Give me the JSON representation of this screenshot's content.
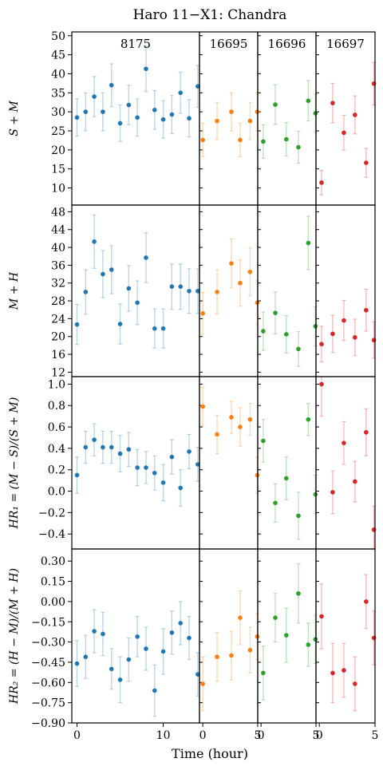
{
  "title": "Haro 11−X1: Chandra",
  "xlabel": "Time (hour)",
  "colors": {
    "8175": "#1f77b4",
    "16695": "#ff7f0e",
    "16696": "#2ca02c",
    "16697": "#d62728"
  },
  "chart_data": {
    "type": "scatter",
    "title": "Haro 11−X1: Chandra",
    "xlabel": "Time (hour)",
    "observations": [
      {
        "obsid": "8175",
        "xlim": [
          -0.6,
          14.2
        ],
        "xticks": [
          0,
          10
        ],
        "color": "#1f77b4"
      },
      {
        "obsid": "16695",
        "xlim": [
          -0.3,
          5.0
        ],
        "xticks": [
          0,
          5
        ],
        "color": "#ff7f0e"
      },
      {
        "obsid": "16696",
        "xlim": [
          -0.3,
          5.0
        ],
        "xticks": [
          0,
          5
        ],
        "color": "#2ca02c"
      },
      {
        "obsid": "16697",
        "xlim": [
          -0.3,
          5.0
        ],
        "xticks": [
          0,
          5
        ],
        "color": "#d62728"
      }
    ],
    "panels": [
      {
        "ylabel": "S + M",
        "ylim": [
          5.5,
          51
        ],
        "yticks": [
          10,
          15,
          20,
          25,
          30,
          35,
          40,
          45,
          50
        ],
        "series": [
          {
            "obsid": "8175",
            "points": [
              [
                0,
                28.5,
                4.9
              ],
              [
                1,
                30,
                5.0
              ],
              [
                2,
                34,
                5.3
              ],
              [
                3,
                30,
                5.0
              ],
              [
                4,
                37,
                5.6
              ],
              [
                5,
                27,
                4.8
              ],
              [
                6,
                31.8,
                5.2
              ],
              [
                7,
                28.5,
                4.9
              ],
              [
                8,
                41.3,
                6.0
              ],
              [
                9,
                30.5,
                5.1
              ],
              [
                10,
                28,
                4.9
              ],
              [
                11,
                29.3,
                5.0
              ],
              [
                12,
                35,
                5.4
              ],
              [
                13,
                28.3,
                4.9
              ],
              [
                14,
                36.7,
                5.5
              ]
            ]
          },
          {
            "obsid": "16695",
            "points": [
              [
                0,
                22.6,
                4.4
              ],
              [
                1.3,
                27.6,
                4.9
              ],
              [
                2.6,
                30,
                5.0
              ],
              [
                3.4,
                22.6,
                4.4
              ],
              [
                4.3,
                27.6,
                4.9
              ],
              [
                4.95,
                30,
                5.0
              ]
            ]
          },
          {
            "obsid": "16696",
            "points": [
              [
                0.2,
                22.2,
                4.4
              ],
              [
                1.3,
                31.9,
                5.2
              ],
              [
                2.3,
                22.8,
                4.4
              ],
              [
                3.4,
                20.7,
                4.2
              ],
              [
                4.3,
                32.9,
                5.3
              ],
              [
                4.95,
                29.6,
                5.0
              ]
            ]
          },
          {
            "obsid": "16697",
            "points": [
              [
                0.2,
                11.4,
                3.2
              ],
              [
                1.2,
                32.3,
                5.2
              ],
              [
                2.2,
                24.5,
                4.6
              ],
              [
                3.2,
                29.2,
                5.0
              ],
              [
                4.2,
                16.6,
                3.8
              ],
              [
                4.9,
                37.4,
                5.6
              ]
            ]
          }
        ]
      },
      {
        "ylabel": "M + H",
        "ylim": [
          11,
          49.5
        ],
        "yticks": [
          12,
          16,
          20,
          24,
          28,
          32,
          36,
          40,
          44,
          48
        ],
        "series": [
          {
            "obsid": "8175",
            "points": [
              [
                0,
                22.7,
                4.5
              ],
              [
                1,
                30,
                5.0
              ],
              [
                2,
                41.3,
                6.0
              ],
              [
                3,
                34,
                5.3
              ],
              [
                4,
                35,
                5.4
              ],
              [
                5,
                22.8,
                4.5
              ],
              [
                6,
                30.8,
                5.1
              ],
              [
                7,
                27.6,
                4.9
              ],
              [
                8,
                37.7,
                5.6
              ],
              [
                9,
                21.8,
                4.4
              ],
              [
                10,
                21.8,
                4.4
              ],
              [
                11,
                31.2,
                5.1
              ],
              [
                12,
                31.2,
                5.1
              ],
              [
                13,
                30.2,
                5.0
              ],
              [
                14,
                30.2,
                5.0
              ]
            ]
          },
          {
            "obsid": "16695",
            "points": [
              [
                0,
                25.2,
                4.7
              ],
              [
                1.3,
                30,
                5.0
              ],
              [
                2.6,
                36.4,
                5.5
              ],
              [
                3.4,
                32,
                5.2
              ],
              [
                4.3,
                34.5,
                5.4
              ],
              [
                4.95,
                27.6,
                4.9
              ]
            ]
          },
          {
            "obsid": "16696",
            "points": [
              [
                0.2,
                21.2,
                4.3
              ],
              [
                1.3,
                25.3,
                4.7
              ],
              [
                2.3,
                20.5,
                4.2
              ],
              [
                3.4,
                17.2,
                3.9
              ],
              [
                4.3,
                41,
                6.0
              ],
              [
                4.95,
                22.3,
                4.4
              ]
            ]
          },
          {
            "obsid": "16697",
            "points": [
              [
                0.2,
                18.3,
                4.0
              ],
              [
                1.2,
                20.6,
                4.2
              ],
              [
                2.2,
                23.6,
                4.5
              ],
              [
                3.2,
                19.8,
                4.1
              ],
              [
                4.2,
                25.9,
                4.7
              ],
              [
                4.9,
                19.2,
                4.1
              ]
            ]
          }
        ]
      },
      {
        "ylabel": "HR₁ = (M − S)/(S + M)",
        "ylim": [
          -0.54,
          1.07
        ],
        "yticks": [
          -0.4,
          -0.2,
          0.0,
          0.2,
          0.4,
          0.6,
          0.8,
          1.0
        ],
        "series": [
          {
            "obsid": "8175",
            "points": [
              [
                0,
                0.15,
                0.17
              ],
              [
                1,
                0.41,
                0.15
              ],
              [
                2,
                0.48,
                0.15
              ],
              [
                3,
                0.41,
                0.15
              ],
              [
                4,
                0.41,
                0.15
              ],
              [
                5,
                0.35,
                0.17
              ],
              [
                6,
                0.39,
                0.16
              ],
              [
                7,
                0.22,
                0.17
              ],
              [
                8,
                0.22,
                0.15
              ],
              [
                9,
                0.17,
                0.16
              ],
              [
                10,
                0.08,
                0.17
              ],
              [
                11,
                0.32,
                0.16
              ],
              [
                12,
                0.03,
                0.17
              ],
              [
                13,
                0.37,
                0.16
              ],
              [
                14,
                0.25,
                0.16
              ]
            ]
          },
          {
            "obsid": "16695",
            "points": [
              [
                0,
                0.79,
                0.18
              ],
              [
                1.3,
                0.53,
                0.18
              ],
              [
                2.6,
                0.69,
                0.15
              ],
              [
                3.4,
                0.6,
                0.18
              ],
              [
                4.3,
                0.67,
                0.15
              ],
              [
                4.95,
                0.15,
                0.17
              ]
            ]
          },
          {
            "obsid": "16696",
            "points": [
              [
                0.2,
                0.47,
                0.2
              ],
              [
                1.3,
                -0.11,
                0.18
              ],
              [
                2.3,
                0.12,
                0.2
              ],
              [
                3.4,
                -0.23,
                0.22
              ],
              [
                4.3,
                0.67,
                0.15
              ],
              [
                4.95,
                -0.03,
                0.18
              ]
            ]
          },
          {
            "obsid": "16697",
            "points": [
              [
                0.2,
                1.0,
                0.3
              ],
              [
                1.2,
                -0.01,
                0.2
              ],
              [
                2.2,
                0.45,
                0.2
              ],
              [
                3.2,
                0.09,
                0.19
              ],
              [
                4.2,
                0.55,
                0.22
              ],
              [
                4.9,
                -0.36,
                0.22
              ]
            ]
          }
        ]
      },
      {
        "ylabel": "HR₂ = (H − M)/(M + H)",
        "ylim": [
          -0.9,
          0.39
        ],
        "yticks": [
          -0.9,
          -0.75,
          -0.6,
          -0.45,
          -0.3,
          -0.15,
          0.0,
          0.15,
          0.3
        ],
        "series": [
          {
            "obsid": "8175",
            "points": [
              [
                0,
                -0.46,
                0.17
              ],
              [
                1,
                -0.41,
                0.16
              ],
              [
                2,
                -0.22,
                0.16
              ],
              [
                3,
                -0.24,
                0.16
              ],
              [
                4,
                -0.5,
                0.15
              ],
              [
                5,
                -0.58,
                0.17
              ],
              [
                6,
                -0.43,
                0.16
              ],
              [
                7,
                -0.26,
                0.15
              ],
              [
                8,
                -0.35,
                0.16
              ],
              [
                9,
                -0.66,
                0.19
              ],
              [
                10,
                -0.37,
                0.17
              ],
              [
                11,
                -0.23,
                0.16
              ],
              [
                12,
                -0.16,
                0.16
              ],
              [
                13,
                -0.27,
                0.16
              ],
              [
                14,
                -0.54,
                0.16
              ]
            ]
          },
          {
            "obsid": "16695",
            "points": [
              [
                0,
                -0.61,
                0.2
              ],
              [
                1.3,
                -0.41,
                0.18
              ],
              [
                2.6,
                -0.4,
                0.18
              ],
              [
                3.4,
                -0.12,
                0.2
              ],
              [
                4.3,
                -0.36,
                0.17
              ],
              [
                4.95,
                -0.26,
                0.17
              ]
            ]
          },
          {
            "obsid": "16696",
            "points": [
              [
                0.2,
                -0.53,
                0.2
              ],
              [
                1.3,
                -0.12,
                0.18
              ],
              [
                2.3,
                -0.25,
                0.2
              ],
              [
                3.4,
                0.06,
                0.22
              ],
              [
                4.3,
                -0.32,
                0.16
              ],
              [
                4.95,
                -0.28,
                0.18
              ]
            ]
          },
          {
            "obsid": "16697",
            "points": [
              [
                0.2,
                -0.11,
                0.24
              ],
              [
                1.2,
                -0.53,
                0.22
              ],
              [
                2.2,
                -0.51,
                0.2
              ],
              [
                3.2,
                -0.61,
                0.2
              ],
              [
                4.2,
                0.0,
                0.2
              ],
              [
                4.9,
                -0.27,
                0.2
              ]
            ]
          }
        ]
      }
    ]
  }
}
